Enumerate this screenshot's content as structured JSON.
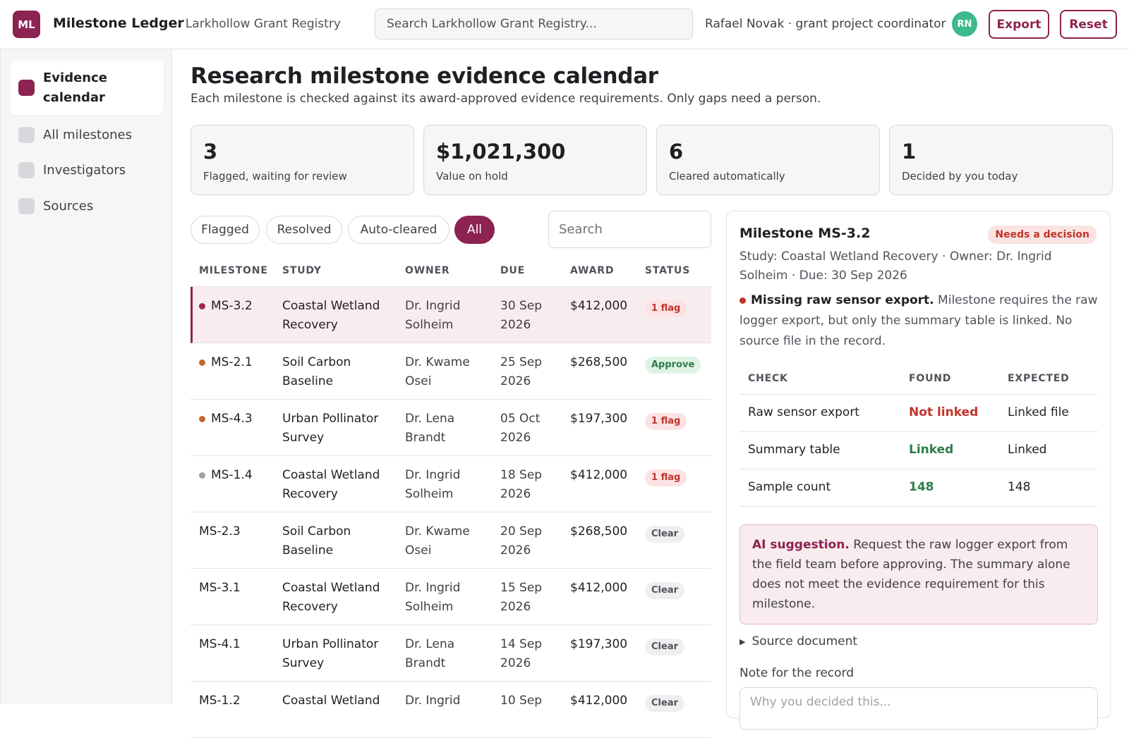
{
  "app": {
    "logo": "ML",
    "title": "Milestone Ledger",
    "registry": "· Larkhollow Grant Registry",
    "search_placeholder": "Search Larkhollow Grant Registry...",
    "user": "Rafael Novak · grant project coordinator",
    "avatar": "RN",
    "export_label": "Export",
    "reset_label": "Reset"
  },
  "sidebar": {
    "items": [
      {
        "label": "Evidence calendar",
        "active": true
      },
      {
        "label": "All milestones"
      },
      {
        "label": "Investigators"
      },
      {
        "label": "Sources"
      }
    ]
  },
  "page": {
    "title": "Research milestone evidence calendar",
    "subtitle": "Each milestone is checked against its award-approved evidence requirements. Only gaps need a person."
  },
  "stats": [
    {
      "value": "3",
      "label": "Flagged, waiting for review"
    },
    {
      "value": "$1,021,300",
      "label": "Value on hold"
    },
    {
      "value": "6",
      "label": "Cleared automatically"
    },
    {
      "value": "1",
      "label": "Decided by you today"
    }
  ],
  "filters": {
    "chips": [
      "Flagged",
      "Resolved",
      "Auto-cleared",
      "All"
    ],
    "active": "All",
    "search_placeholder": "Search"
  },
  "table": {
    "headers": {
      "milestone": "MILESTONE",
      "study": "STUDY",
      "owner": "OWNER",
      "due": "DUE",
      "award": "AWARD",
      "status": "STATUS"
    },
    "rows": [
      {
        "id": "MS-3.2",
        "study": "Coastal Wetland Recovery",
        "owner": "Dr. Ingrid Solheim",
        "due": "30 Sep 2026",
        "award": "$412,000",
        "status": "1 flag",
        "status_kind": "flag",
        "dot": "#9c2a4a",
        "selected": true
      },
      {
        "id": "MS-2.1",
        "study": "Soil Carbon Baseline",
        "owner": "Dr. Kwame Osei",
        "due": "25 Sep 2026",
        "award": "$268,500",
        "status": "Approve",
        "status_kind": "approve",
        "dot": "#c2692a"
      },
      {
        "id": "MS-4.3",
        "study": "Urban Pollinator Survey",
        "owner": "Dr. Lena Brandt",
        "due": "05 Oct 2026",
        "award": "$197,300",
        "status": "1 flag",
        "status_kind": "flag",
        "dot": "#c2692a"
      },
      {
        "id": "MS-1.4",
        "study": "Coastal Wetland Recovery",
        "owner": "Dr. Ingrid Solheim",
        "due": "18 Sep 2026",
        "award": "$412,000",
        "status": "1 flag",
        "status_kind": "flag",
        "dot": "#a1a1aa"
      },
      {
        "id": "MS-2.3",
        "study": "Soil Carbon Baseline",
        "owner": "Dr. Kwame Osei",
        "due": "20 Sep 2026",
        "award": "$268,500",
        "status": "Clear",
        "status_kind": "clear"
      },
      {
        "id": "MS-3.1",
        "study": "Coastal Wetland Recovery",
        "owner": "Dr. Ingrid Solheim",
        "due": "15 Sep 2026",
        "award": "$412,000",
        "status": "Clear",
        "status_kind": "clear"
      },
      {
        "id": "MS-4.1",
        "study": "Urban Pollinator Survey",
        "owner": "Dr. Lena Brandt",
        "due": "14 Sep 2026",
        "award": "$197,300",
        "status": "Clear",
        "status_kind": "clear"
      },
      {
        "id": "MS-1.2",
        "study": "Coastal Wetland",
        "owner": "Dr. Ingrid",
        "due": "10 Sep",
        "award": "$412,000",
        "status": "Clear",
        "status_kind": "clear"
      }
    ]
  },
  "detail": {
    "title": "Milestone MS-3.2",
    "pill": "Needs a decision",
    "meta": "Study: Coastal Wetland Recovery · Owner: Dr. Ingrid Solheim · Due: 30 Sep 2026",
    "finding_title": "Missing raw sensor export.",
    "finding_text": "Milestone requires the raw logger export, but only the summary table is linked. No source file in the record.",
    "checks_headers": {
      "check": "CHECK",
      "found": "FOUND",
      "expected": "EXPECTED"
    },
    "checks": [
      {
        "check": "Raw sensor export",
        "found": "Not linked",
        "expected": "Linked file",
        "found_kind": "red"
      },
      {
        "check": "Summary table",
        "found": "Linked",
        "expected": "Linked",
        "found_kind": "green"
      },
      {
        "check": "Sample count",
        "found": "148",
        "expected": "148",
        "found_kind": "green"
      }
    ],
    "ai_label": "AI suggestion.",
    "ai_text": "Request the raw logger export from the field team before approving. The summary alone does not meet the evidence requirement for this milestone.",
    "source_label": "Source document",
    "note_label": "Note for the record",
    "note_placeholder": "Why you decided this..."
  },
  "colors": {
    "accent": "#8c2350",
    "flag": "#c0342b",
    "approve": "#2e7d4a"
  }
}
